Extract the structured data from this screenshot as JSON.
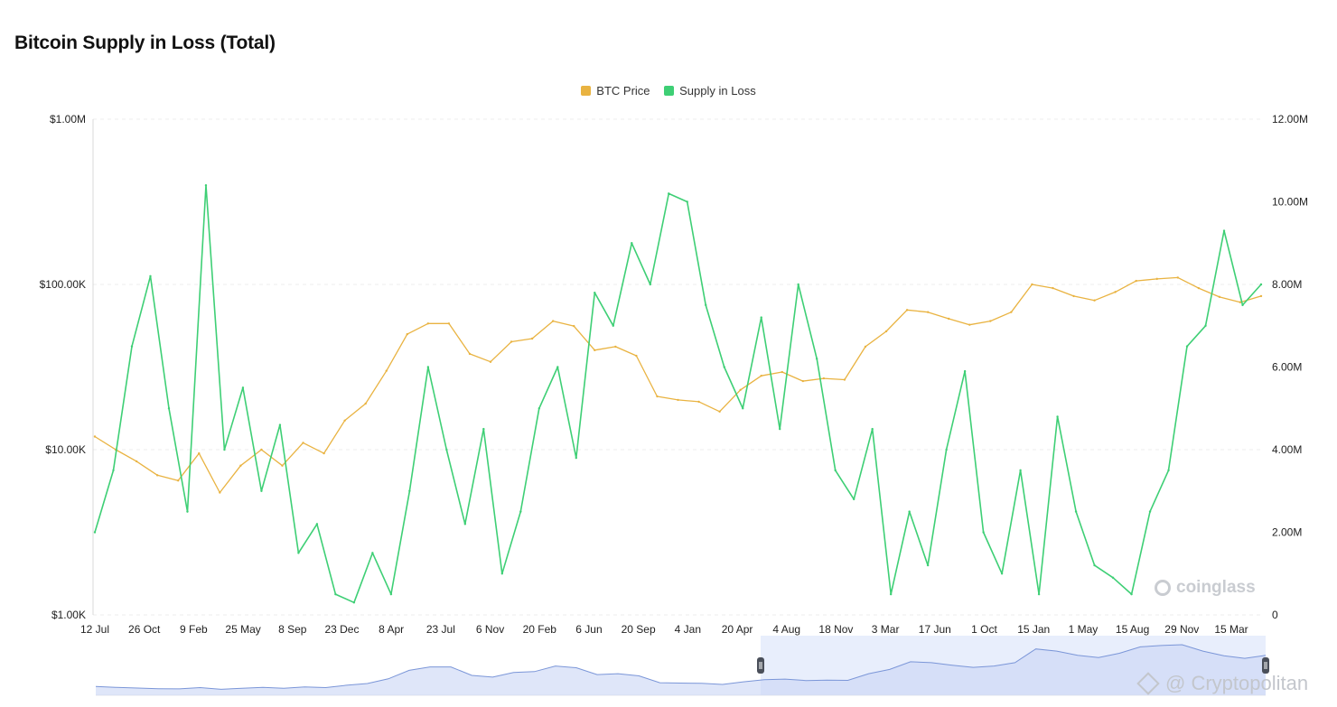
{
  "title": "Bitcoin Supply in Loss (Total)",
  "legend": [
    {
      "label": "BTC Price",
      "color": "#e9b341"
    },
    {
      "label": "Supply in Loss",
      "color": "#3ecf75"
    }
  ],
  "watermarks": {
    "coinglass": "coinglass",
    "cryptopolitan": "@ Cryptopolitan"
  },
  "chart_data": {
    "type": "line",
    "title": "Bitcoin Supply in Loss (Total)",
    "grid": true,
    "legend_placement": "top-center",
    "x_ticks": [
      "12 Jul",
      "26 Oct",
      "9 Feb",
      "25 May",
      "8 Sep",
      "23 Dec",
      "8 Apr",
      "23 Jul",
      "6 Nov",
      "20 Feb",
      "6 Jun",
      "20 Sep",
      "4 Jan",
      "20 Apr",
      "4 Aug",
      "18 Nov",
      "3 Mar",
      "17 Jun",
      "1 Oct",
      "15 Jan",
      "1 May",
      "15 Aug",
      "29 Nov",
      "15 Mar"
    ],
    "left_axis": {
      "scale": "log",
      "ticks": [
        "$1.00K",
        "$10.00K",
        "$100.00K",
        "$1.00M"
      ],
      "range": [
        1000,
        1000000
      ]
    },
    "right_axis": {
      "scale": "linear",
      "ticks": [
        "0",
        "2.00M",
        "4.00M",
        "6.00M",
        "8.00M",
        "10.00M",
        "12.00M"
      ],
      "range": [
        0,
        12000000
      ]
    },
    "series": [
      {
        "name": "BTC Price",
        "axis": "left",
        "color": "#e9b341",
        "values": [
          12000,
          10000,
          8500,
          7000,
          6500,
          9500,
          5500,
          8000,
          10000,
          8000,
          11000,
          9500,
          15000,
          19000,
          30000,
          50000,
          58000,
          58000,
          38000,
          34000,
          45000,
          47000,
          60000,
          56000,
          40000,
          42000,
          37000,
          21000,
          20000,
          19500,
          17000,
          23000,
          28000,
          29500,
          26000,
          27000,
          26500,
          42000,
          52000,
          70000,
          68000,
          62000,
          57000,
          60000,
          68000,
          100000,
          95000,
          85000,
          80000,
          90000,
          105000,
          108000,
          110000,
          95000,
          84000,
          78000,
          85000
        ]
      },
      {
        "name": "Supply in Loss",
        "axis": "right",
        "color": "#3ecf75",
        "values": [
          2000000,
          3500000,
          6500000,
          8200000,
          5000000,
          2500000,
          10400000,
          4000000,
          5500000,
          3000000,
          4600000,
          1500000,
          2200000,
          500000,
          300000,
          1500000,
          500000,
          3000000,
          6000000,
          4000000,
          2200000,
          4500000,
          1000000,
          2500000,
          5000000,
          6000000,
          3800000,
          7800000,
          7000000,
          9000000,
          8000000,
          10200000,
          10000000,
          7500000,
          6000000,
          5000000,
          7200000,
          4500000,
          8000000,
          6200000,
          3500000,
          2800000,
          4500000,
          500000,
          2500000,
          1200000,
          4000000,
          5900000,
          2000000,
          1000000,
          3500000,
          500000,
          4800000,
          2500000,
          1200000,
          900000,
          500000,
          2500000,
          3500000,
          6500000,
          7000000,
          9300000,
          7500000,
          8000000
        ]
      }
    ]
  }
}
